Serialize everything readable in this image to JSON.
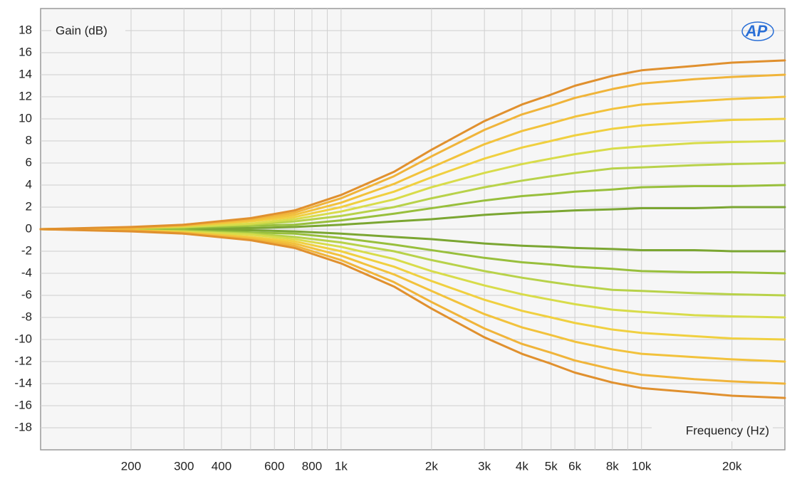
{
  "chart_data": {
    "type": "line",
    "ylabel": "Gain (dB)",
    "xlabel": "Frequency (Hz)",
    "logo": "AP",
    "xscale": "log",
    "grid": true,
    "xlim": [
      100,
      30000
    ],
    "ylim": [
      -20,
      20
    ],
    "xticks": [
      200,
      300,
      400,
      600,
      800,
      {
        "value": 1000,
        "label": "1k"
      },
      {
        "value": 2000,
        "label": "2k"
      },
      {
        "value": 3000,
        "label": "3k"
      },
      {
        "value": 4000,
        "label": "4k"
      },
      {
        "value": 5000,
        "label": "5k"
      },
      {
        "value": 6000,
        "label": "6k"
      },
      {
        "value": 8000,
        "label": "8k"
      },
      {
        "value": 10000,
        "label": "10k"
      },
      {
        "value": 20000,
        "label": "20k"
      }
    ],
    "x_minor_grid": [
      500,
      700,
      900,
      7000,
      9000
    ],
    "yticks": [
      -18,
      -16,
      -14,
      -12,
      -10,
      -8,
      -6,
      -4,
      -2,
      0,
      2,
      4,
      6,
      8,
      10,
      12,
      14,
      16,
      18
    ],
    "x": [
      100,
      200,
      300,
      500,
      700,
      1000,
      1500,
      2000,
      3000,
      4000,
      5000,
      6000,
      8000,
      10000,
      15000,
      20000,
      30000
    ],
    "series": [
      {
        "color": "#7ba632",
        "values": [
          0,
          0,
          0.1,
          0.1,
          0.2,
          0.4,
          0.7,
          0.9,
          1.3,
          1.5,
          1.6,
          1.7,
          1.8,
          1.9,
          1.9,
          2.0,
          2.0
        ]
      },
      {
        "color": "#7ba632",
        "values": [
          0,
          0,
          -0.1,
          -0.1,
          -0.2,
          -0.4,
          -0.7,
          -0.9,
          -1.3,
          -1.5,
          -1.6,
          -1.7,
          -1.8,
          -1.9,
          -1.9,
          -2.0,
          -2.0
        ]
      },
      {
        "color": "#98bf3c",
        "values": [
          0,
          0,
          0.1,
          0.3,
          0.4,
          0.8,
          1.4,
          1.9,
          2.6,
          3.0,
          3.2,
          3.4,
          3.6,
          3.8,
          3.9,
          3.9,
          4.0
        ]
      },
      {
        "color": "#98bf3c",
        "values": [
          0,
          0,
          -0.1,
          -0.3,
          -0.4,
          -0.8,
          -1.4,
          -1.9,
          -2.6,
          -3.0,
          -3.2,
          -3.4,
          -3.6,
          -3.8,
          -3.9,
          -3.9,
          -4.0
        ]
      },
      {
        "color": "#b8d24a",
        "values": [
          0,
          0.1,
          0.2,
          0.4,
          0.7,
          1.2,
          2.0,
          2.8,
          3.8,
          4.4,
          4.8,
          5.1,
          5.5,
          5.6,
          5.8,
          5.9,
          6.0
        ]
      },
      {
        "color": "#b8d24a",
        "values": [
          0,
          -0.1,
          -0.2,
          -0.4,
          -0.7,
          -1.2,
          -2.0,
          -2.8,
          -3.8,
          -4.4,
          -4.8,
          -5.1,
          -5.5,
          -5.6,
          -5.8,
          -5.9,
          -6.0
        ]
      },
      {
        "color": "#d8dc4a",
        "values": [
          0,
          0.1,
          0.2,
          0.5,
          0.9,
          1.6,
          2.7,
          3.8,
          5.1,
          5.9,
          6.4,
          6.8,
          7.3,
          7.5,
          7.8,
          7.9,
          8.0
        ]
      },
      {
        "color": "#d8dc4a",
        "values": [
          0,
          -0.1,
          -0.2,
          -0.5,
          -0.9,
          -1.6,
          -2.7,
          -3.8,
          -5.1,
          -5.9,
          -6.4,
          -6.8,
          -7.3,
          -7.5,
          -7.8,
          -7.9,
          -8.0
        ]
      },
      {
        "color": "#f0d040",
        "values": [
          0,
          0.1,
          0.3,
          0.7,
          1.1,
          2.0,
          3.4,
          4.7,
          6.4,
          7.4,
          8.0,
          8.5,
          9.1,
          9.4,
          9.7,
          9.9,
          10.0
        ]
      },
      {
        "color": "#f0d040",
        "values": [
          0,
          -0.1,
          -0.3,
          -0.7,
          -1.1,
          -2.0,
          -3.4,
          -4.7,
          -6.4,
          -7.4,
          -8.0,
          -8.5,
          -9.1,
          -9.4,
          -9.7,
          -9.9,
          -10.0
        ]
      },
      {
        "color": "#f2c23c",
        "values": [
          0,
          0.1,
          0.3,
          0.8,
          1.3,
          2.4,
          4.1,
          5.6,
          7.7,
          8.9,
          9.6,
          10.2,
          10.9,
          11.3,
          11.6,
          11.8,
          12.0
        ]
      },
      {
        "color": "#f2c23c",
        "values": [
          0,
          -0.1,
          -0.3,
          -0.8,
          -1.3,
          -2.4,
          -4.1,
          -5.6,
          -7.7,
          -8.9,
          -9.6,
          -10.2,
          -10.9,
          -11.3,
          -11.6,
          -11.8,
          -12.0
        ]
      },
      {
        "color": "#f0b43a",
        "values": [
          0,
          0.1,
          0.4,
          0.9,
          1.5,
          2.8,
          4.8,
          6.6,
          9.0,
          10.4,
          11.2,
          11.9,
          12.7,
          13.2,
          13.6,
          13.8,
          14.0
        ]
      },
      {
        "color": "#f0b43a",
        "values": [
          0,
          -0.1,
          -0.4,
          -0.9,
          -1.5,
          -2.8,
          -4.8,
          -6.6,
          -9.0,
          -10.4,
          -11.2,
          -11.9,
          -12.7,
          -13.2,
          -13.6,
          -13.8,
          -14.0
        ]
      },
      {
        "color": "#e0902e",
        "values": [
          0,
          0.2,
          0.4,
          1.0,
          1.7,
          3.1,
          5.2,
          7.2,
          9.8,
          11.3,
          12.2,
          13.0,
          13.9,
          14.4,
          14.8,
          15.1,
          15.3
        ]
      },
      {
        "color": "#e0902e",
        "values": [
          0,
          -0.2,
          -0.4,
          -1.0,
          -1.7,
          -3.1,
          -5.2,
          -7.2,
          -9.8,
          -11.3,
          -12.2,
          -13.0,
          -13.9,
          -14.4,
          -14.8,
          -15.1,
          -15.3
        ]
      }
    ]
  }
}
